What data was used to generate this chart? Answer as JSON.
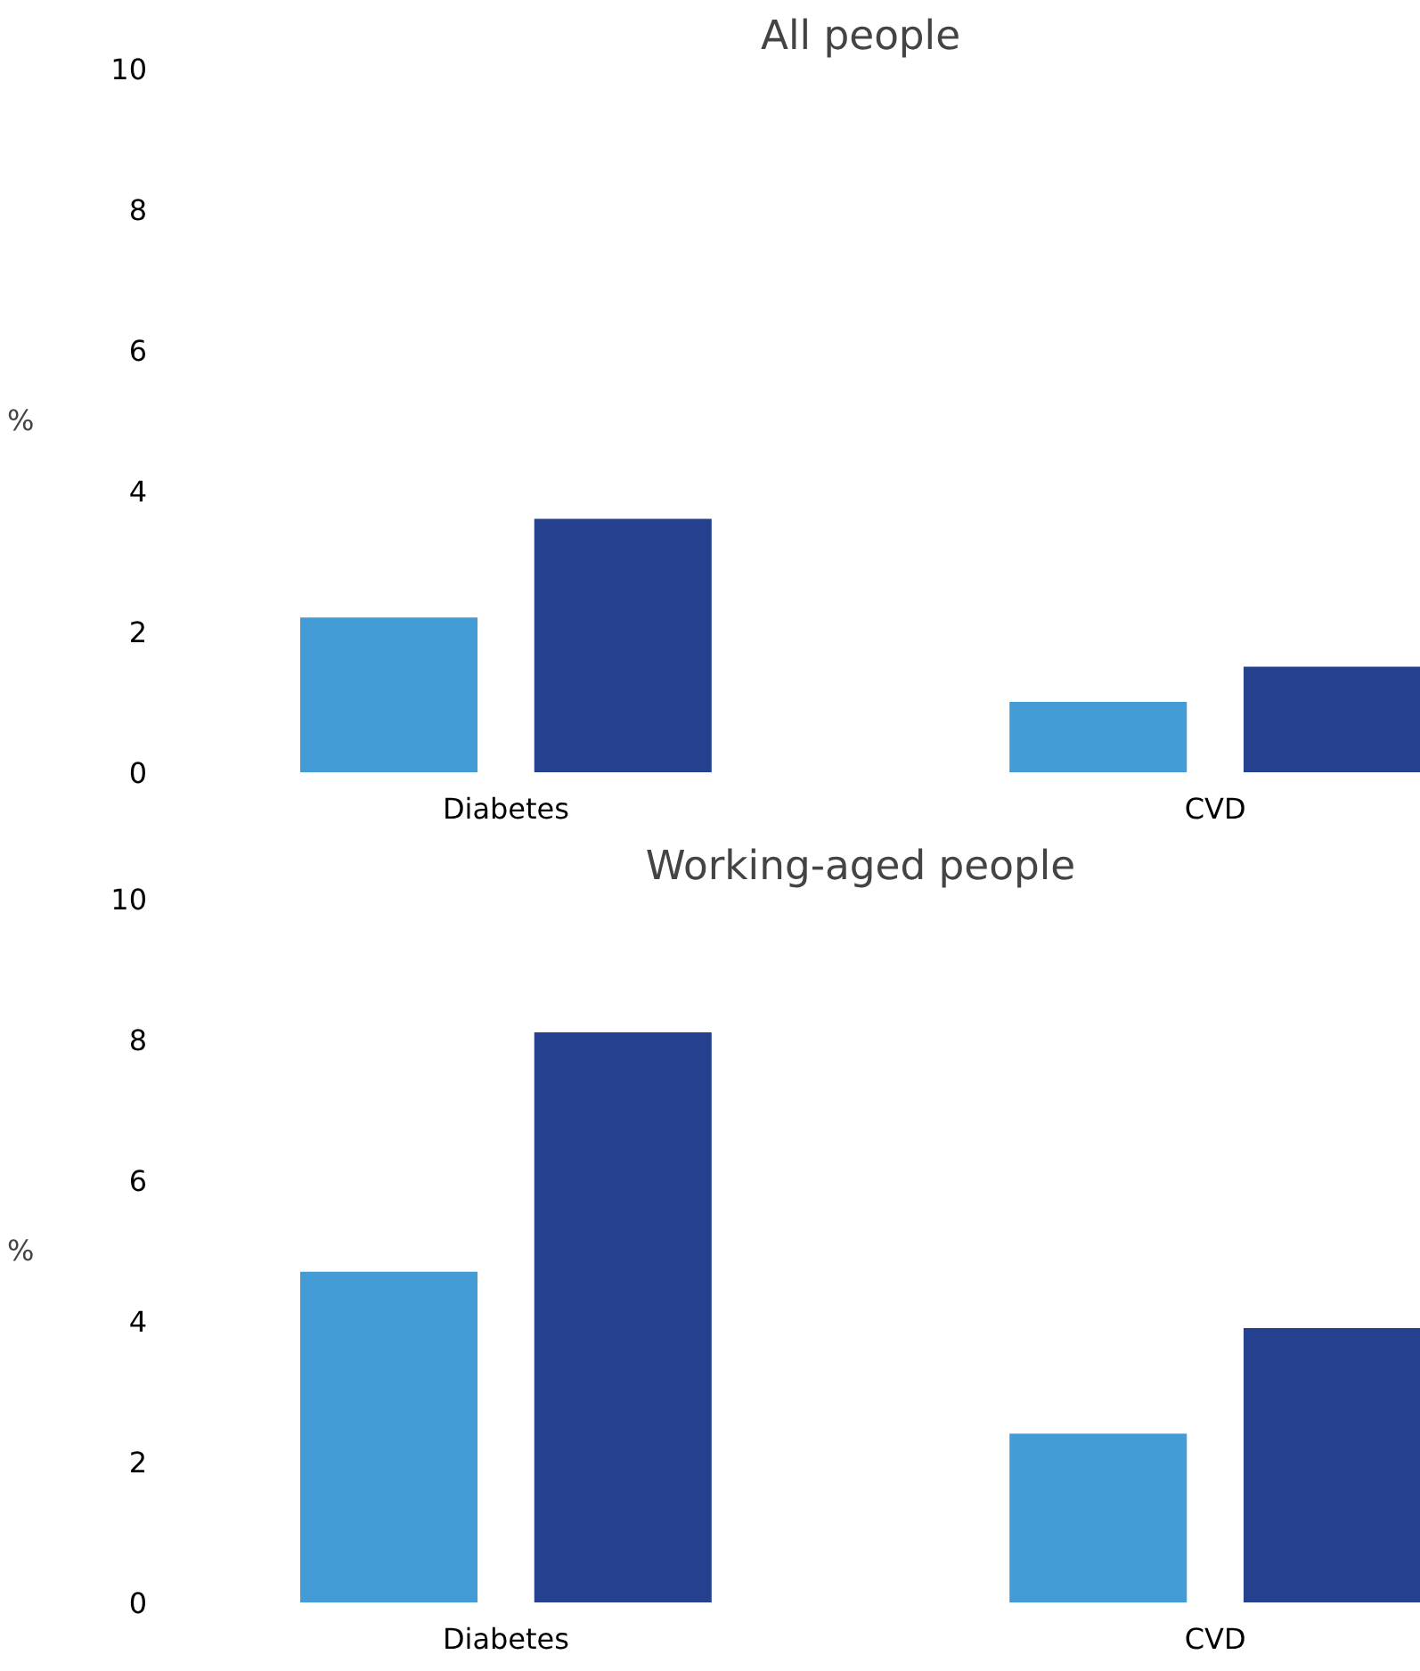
{
  "chart_data": [
    {
      "type": "bar",
      "title": "All people",
      "ylabel": "%",
      "categories": [
        "Diabetes",
        "CVD"
      ],
      "ylim": [
        0,
        10
      ],
      "yticks": [
        0,
        2,
        4,
        6,
        8,
        10
      ],
      "series": [
        {
          "color": "#439cd6",
          "values": [
            2.2,
            1.0
          ]
        },
        {
          "color": "#24408e",
          "values": [
            3.6,
            1.5
          ]
        }
      ]
    },
    {
      "type": "bar",
      "title": "Working-aged people",
      "ylabel": "%",
      "categories": [
        "Diabetes",
        "CVD"
      ],
      "ylim": [
        0,
        10
      ],
      "yticks": [
        0,
        2,
        4,
        6,
        8,
        10
      ],
      "series": [
        {
          "color": "#439cd6",
          "values": [
            4.7,
            2.4
          ]
        },
        {
          "color": "#24408e",
          "values": [
            8.1,
            3.9
          ]
        }
      ]
    }
  ]
}
